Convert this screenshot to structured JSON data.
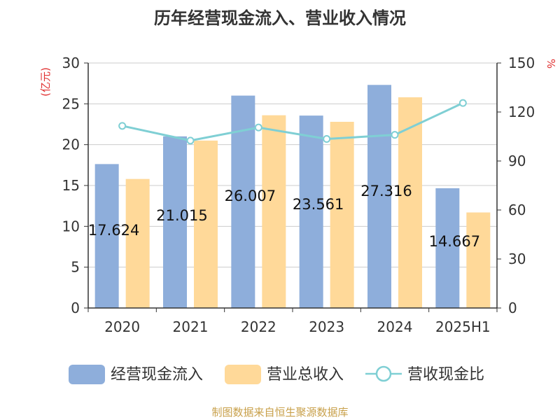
{
  "chart_data": {
    "type": "bar",
    "title": "历年经营现金流入、营业收入情况",
    "y_left_unit": "(亿元)",
    "y_right_unit": "%",
    "categories": [
      "2020",
      "2021",
      "2022",
      "2023",
      "2024",
      "2025H1"
    ],
    "y_left_ticks": [
      "0",
      "5",
      "10",
      "15",
      "20",
      "25",
      "30"
    ],
    "y_right_ticks": [
      "0",
      "30",
      "60",
      "90",
      "120",
      "150"
    ],
    "ylim_left": [
      0,
      30
    ],
    "ylim_right": [
      0,
      150
    ],
    "grid": true,
    "legend_position": "bottom",
    "series": [
      {
        "name": "经营现金流入",
        "kind": "bar",
        "axis": "left",
        "color": "#8eaedb",
        "values": [
          17.624,
          21.015,
          26.007,
          23.561,
          27.316,
          14.667
        ],
        "labels": [
          "17.624",
          "21.015",
          "26.007",
          "23.561",
          "27.316",
          "14.667"
        ]
      },
      {
        "name": "营业总收入",
        "kind": "bar",
        "axis": "left",
        "color": "#ffd999",
        "values": [
          15.8,
          20.5,
          23.6,
          22.8,
          25.8,
          11.7
        ]
      },
      {
        "name": "营收现金比",
        "kind": "line",
        "axis": "right",
        "color": "#7fcfd4",
        "values": [
          111.5,
          102.5,
          110.5,
          103.5,
          106.0,
          125.5
        ]
      }
    ],
    "source": "制图数据来自恒生聚源数据库"
  }
}
